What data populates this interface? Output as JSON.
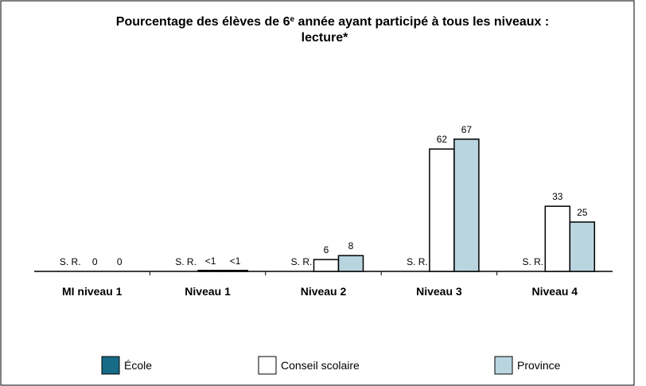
{
  "chart_data": {
    "type": "bar",
    "title": [
      "Pourcentage des élèves de 6",
      "e",
      " année ayant participé à tous les niveaux :",
      "lecture*"
    ],
    "categories": [
      "MI niveau 1",
      "Niveau 1",
      "Niveau 2",
      "Niveau 3",
      "Niveau 4"
    ],
    "series": [
      {
        "name": "École",
        "color": "#176b87",
        "values": [
          null,
          null,
          null,
          null,
          null
        ],
        "value_labels": [
          "S. R.",
          "S. R.",
          "S. R.",
          "S. R.",
          "S. R."
        ]
      },
      {
        "name": "Conseil scolaire",
        "color": "#ffffff",
        "values": [
          0,
          0.5,
          6,
          62,
          33
        ],
        "value_labels": [
          "0",
          "<1",
          "6",
          "62",
          "33"
        ]
      },
      {
        "name": "Province",
        "color": "#b9d5e0",
        "values": [
          0,
          0.5,
          8,
          67,
          25
        ],
        "value_labels": [
          "0",
          "<1",
          "8",
          "67",
          "25"
        ]
      }
    ]
  }
}
